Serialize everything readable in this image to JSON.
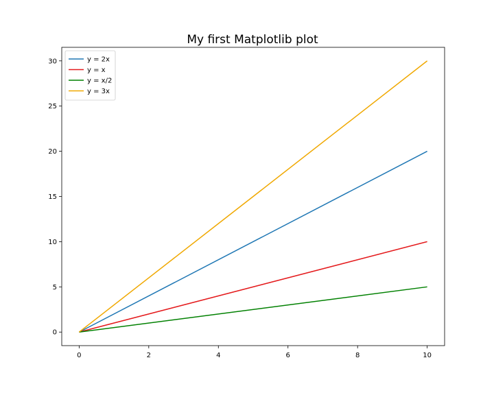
{
  "chart_data": {
    "type": "line",
    "title": "My first Matplotlib plot",
    "xlabel": "",
    "ylabel": "",
    "xlim": [
      -0.5,
      10.5
    ],
    "ylim": [
      -1.5,
      31.5
    ],
    "xticks": [
      0,
      2,
      4,
      6,
      8,
      10
    ],
    "yticks": [
      0,
      5,
      10,
      15,
      20,
      25,
      30
    ],
    "grid": false,
    "legend_position": "top-left",
    "x": [
      0,
      10
    ],
    "series": [
      {
        "name": "y = 2x",
        "values": [
          0,
          20
        ],
        "color": "#1f77b4"
      },
      {
        "name": "y = x",
        "values": [
          0,
          10
        ],
        "color": "#e41a1c"
      },
      {
        "name": "y = x/2",
        "values": [
          0,
          5
        ],
        "color": "#008000"
      },
      {
        "name": "y = 3x",
        "values": [
          0,
          30
        ],
        "color": "#f0a800"
      }
    ]
  }
}
